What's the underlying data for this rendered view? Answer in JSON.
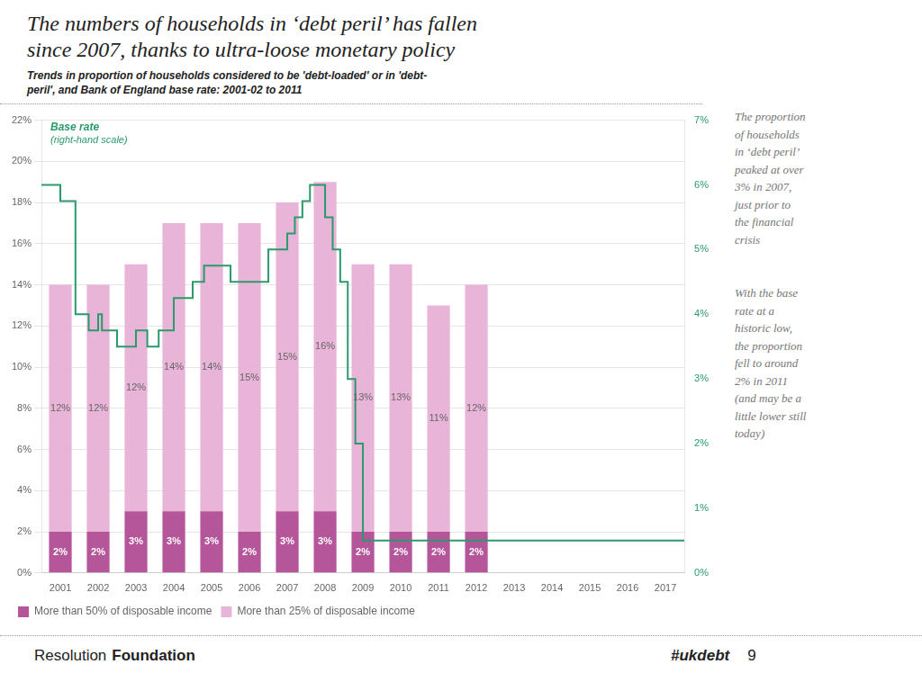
{
  "chart_data": {
    "type": "bar",
    "title": "The numbers of households in ‘debt peril’ has fallen\nsince 2007, thanks to ultra-loose monetary policy",
    "subtitle": "Trends in proportion of households considered to be 'debt-loaded' or in 'debt-\nperil', and Bank of England base rate: 2001-02 to 2011",
    "x": [
      2001,
      2002,
      2003,
      2004,
      2005,
      2006,
      2007,
      2008,
      2009,
      2010,
      2011,
      2012
    ],
    "series": [
      {
        "name": "More than 50% of disposable income",
        "color": "#b5569a",
        "values": [
          2,
          2,
          3,
          3,
          3,
          2,
          3,
          3,
          2,
          2,
          2,
          2
        ],
        "value_labels": [
          "2%",
          "2%",
          "3%",
          "3%",
          "3%",
          "2%",
          "3%",
          "3%",
          "2%",
          "2%",
          "2%",
          "2%"
        ]
      },
      {
        "name": "More than 25% of disposable income",
        "color": "#e8b4d8",
        "values": [
          12,
          12,
          12,
          14,
          14,
          15,
          15,
          16,
          13,
          13,
          11,
          12
        ],
        "value_labels": [
          "12%",
          "12%",
          "12%",
          "14%",
          "14%",
          "15%",
          "15%",
          "16%",
          "13%",
          "13%",
          "11%",
          "12%"
        ]
      },
      {
        "name": "Base rate",
        "type": "line",
        "axis": "y2",
        "color": "#2a9a6a",
        "x": [
          2000.5,
          2001.0,
          2001.0,
          2001.4,
          2001.4,
          2001.75,
          2001.75,
          2002.0,
          2002.0,
          2002.1,
          2002.1,
          2002.5,
          2002.5,
          2003.0,
          2003.0,
          2003.3,
          2003.3,
          2003.6,
          2003.6,
          2004.0,
          2004.0,
          2004.5,
          2004.5,
          2004.8,
          2004.8,
          2005.0,
          2005.0,
          2005.5,
          2005.5,
          2006.0,
          2006.0,
          2006.5,
          2006.5,
          2007.0,
          2007.0,
          2007.2,
          2007.2,
          2007.4,
          2007.4,
          2007.6,
          2007.6,
          2008.0,
          2008.0,
          2008.2,
          2008.2,
          2008.4,
          2008.4,
          2008.6,
          2008.6,
          2008.8,
          2008.8,
          2009.0,
          2009.0,
          2017.5
        ],
        "values": [
          6.0,
          6.0,
          5.75,
          5.75,
          4.0,
          4.0,
          3.75,
          3.75,
          4.0,
          4.0,
          3.75,
          3.75,
          3.5,
          3.5,
          3.75,
          3.75,
          3.5,
          3.5,
          3.75,
          3.75,
          4.25,
          4.25,
          4.5,
          4.5,
          4.75,
          4.75,
          4.75,
          4.75,
          4.5,
          4.5,
          4.5,
          4.5,
          5.0,
          5.0,
          5.25,
          5.25,
          5.5,
          5.5,
          5.75,
          5.75,
          6.0,
          6.0,
          5.5,
          5.5,
          5.0,
          5.0,
          4.5,
          4.5,
          3.0,
          3.0,
          2.0,
          2.0,
          0.5,
          0.5
        ]
      }
    ],
    "stacked": true,
    "data_labels": true,
    "xlim": [
      2000.5,
      2017.5
    ],
    "xticks": [
      2001,
      2002,
      2003,
      2004,
      2005,
      2006,
      2007,
      2008,
      2009,
      2010,
      2011,
      2012,
      2013,
      2014,
      2015,
      2016,
      2017
    ],
    "ylim": [
      0,
      22
    ],
    "yticks": [
      {
        "value": 0,
        "label": "0%"
      },
      {
        "value": 2,
        "label": "2%"
      },
      {
        "value": 4,
        "label": "4%"
      },
      {
        "value": 6,
        "label": "6%"
      },
      {
        "value": 8,
        "label": "8%"
      },
      {
        "value": 10,
        "label": "10%"
      },
      {
        "value": 12,
        "label": "12%"
      },
      {
        "value": 14,
        "label": "14%"
      },
      {
        "value": 16,
        "label": "16%"
      },
      {
        "value": 18,
        "label": "18%"
      },
      {
        "value": 20,
        "label": "20%"
      },
      {
        "value": 22,
        "label": "22%"
      }
    ],
    "y2lim": [
      0,
      7
    ],
    "y2ticks": [
      {
        "value": 0,
        "label": "0%"
      },
      {
        "value": 1,
        "label": "1%"
      },
      {
        "value": 2,
        "label": "2%"
      },
      {
        "value": 3,
        "label": "3%"
      },
      {
        "value": 4,
        "label": "4%"
      },
      {
        "value": 5,
        "label": "5%"
      },
      {
        "value": 6,
        "label": "6%"
      },
      {
        "value": 7,
        "label": "7%"
      }
    ],
    "grid": true,
    "legend": "lower left",
    "annotations": [
      "(right-hand scale)",
      "The proportion\nof households\nin ‘debt peril’\npeaked at over\n3% in 2007,\njust prior to\nthe financial\ncrisis",
      "With the base\nrate at a\nhistoric low,\nthe proportion\nfell to around\n2% in 2011\n(and may be a\nlittle lower still\ntoday)",
      "Resolution",
      "Foundation",
      "#ukdebt",
      "9"
    ]
  }
}
